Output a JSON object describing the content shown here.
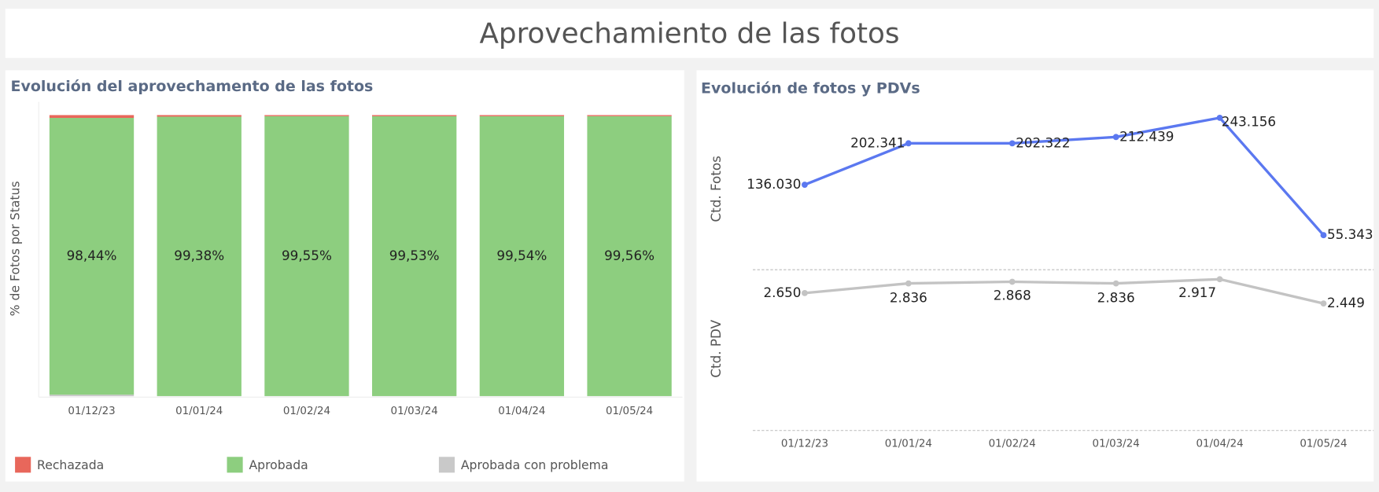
{
  "title": "Aprovechamiento de las fotos",
  "chart_data": [
    {
      "type": "stacked_bar",
      "title": "Evolución del aprovechamento de las fotos",
      "ylabel": "% de Fotos por Status",
      "categories": [
        "01/12/23",
        "01/01/24",
        "01/02/24",
        "01/03/24",
        "01/04/24",
        "01/05/24"
      ],
      "ylim": [
        0,
        100
      ],
      "legend": "bottom",
      "series": [
        {
          "name": "Rechazada",
          "color": "#e8675b",
          "values": [
            1.0,
            0.56,
            0.39,
            0.41,
            0.4,
            0.38
          ]
        },
        {
          "name": "Aprobada",
          "color": "#8dce7f",
          "values": [
            98.44,
            99.38,
            99.55,
            99.53,
            99.54,
            99.56
          ],
          "value_labels": [
            "98,44%",
            "99,38%",
            "99,55%",
            "99,53%",
            "99,54%",
            "99,56%"
          ]
        },
        {
          "name": "Aprobada con problema",
          "color": "#c9c9c9",
          "values": [
            0.56,
            0.06,
            0.06,
            0.06,
            0.06,
            0.06
          ]
        }
      ]
    },
    {
      "type": "line",
      "title": "Evolución de fotos y PDVs",
      "categories": [
        "01/12/23",
        "01/01/24",
        "01/02/24",
        "01/03/24",
        "01/04/24",
        "01/05/24"
      ],
      "ylim": [
        0,
        270000
      ],
      "y2lim": [
        0,
        3100
      ],
      "series": [
        {
          "name": "Ctd. Fotos",
          "color": "#5b78f0",
          "values": [
            136030,
            202341,
            202322,
            212439,
            243156,
            55343
          ],
          "value_labels": [
            "136.030",
            "202.341",
            "202.322",
            "212.439",
            "243.156",
            "55.343"
          ]
        },
        {
          "name": "Ctd. PDV",
          "axis": "y2",
          "color": "#c3c3c3",
          "values": [
            2650,
            2836,
            2868,
            2836,
            2917,
            2449
          ],
          "value_labels": [
            "2.650",
            "2.836",
            "2.868",
            "2.836",
            "2.917",
            "2.449"
          ]
        }
      ]
    }
  ]
}
